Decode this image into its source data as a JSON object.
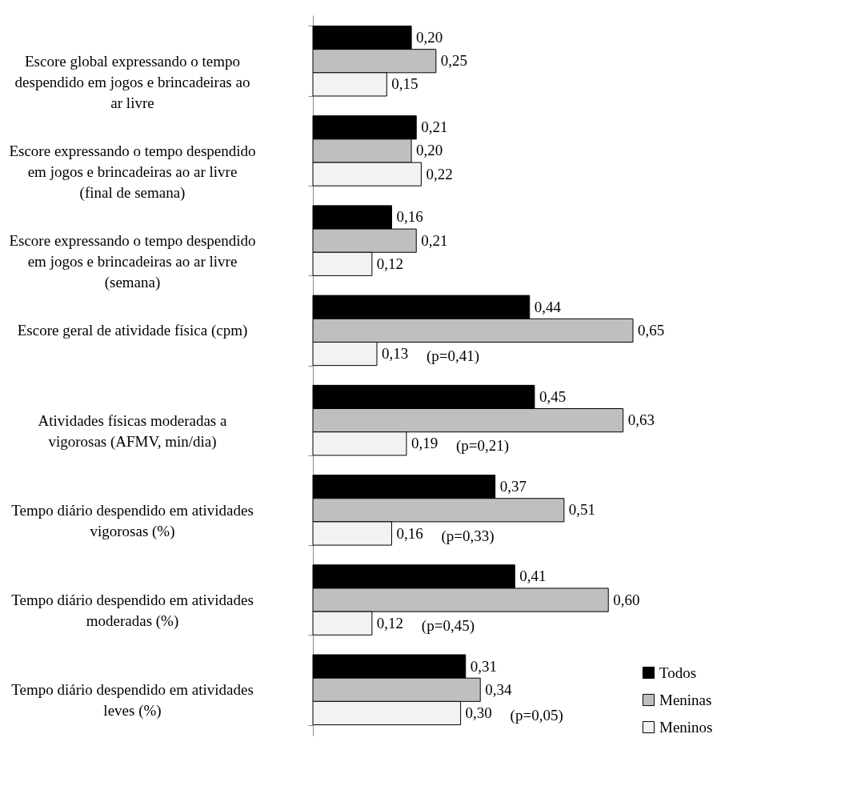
{
  "chart_data": {
    "type": "bar",
    "orientation": "horizontal",
    "legend": "bottom right",
    "grid": false,
    "categories": [
      "Escore global expressando o tempo despendido em jogos e brincadeiras ao ar livre",
      "Escore expressando o tempo despendido em jogos e brincadeiras ao ar livre (final de semana)",
      "Escore expressando o tempo despendido em jogos e brincadeiras ao ar livre (semana)",
      "Escore geral de atividade física (cpm)",
      "Atividades físicas moderadas a vigorosas (AFMV, min/dia)",
      "Tempo diário despendido em atividades vigorosas (%)",
      "Tempo diário despendido em atividades moderadas (%)",
      "Tempo diário despendido em atividades leves (%)"
    ],
    "series": [
      {
        "name": "Todos",
        "color": "#000000",
        "values": [
          0.2,
          0.21,
          0.16,
          0.44,
          0.45,
          0.37,
          0.41,
          0.31
        ],
        "value_labels": [
          "0,20",
          "0,21",
          "0,16",
          "0,44",
          "0,45",
          "0,37",
          "0,41",
          "0,31"
        ]
      },
      {
        "name": "Meninas",
        "color": "#bfbfbf",
        "values": [
          0.25,
          0.2,
          0.21,
          0.65,
          0.63,
          0.51,
          0.6,
          0.34
        ],
        "value_labels": [
          "0,25",
          "0,20",
          "0,21",
          "0,65",
          "0,63",
          "0,51",
          "0,60",
          "0,34"
        ]
      },
      {
        "name": "Meninos",
        "color": "#f2f2f2",
        "values": [
          0.15,
          0.22,
          0.12,
          0.13,
          0.19,
          0.16,
          0.12,
          0.3
        ],
        "value_labels": [
          "0,15",
          "0,22",
          "0,12",
          "0,13",
          "0,19",
          "0,16",
          "0,12",
          "0,30"
        ]
      }
    ],
    "annotations": [
      "(p=0,41)",
      "(p=0,21)",
      "(p=0,33)",
      "(p=0,45)",
      "(p=0,05)"
    ]
  }
}
